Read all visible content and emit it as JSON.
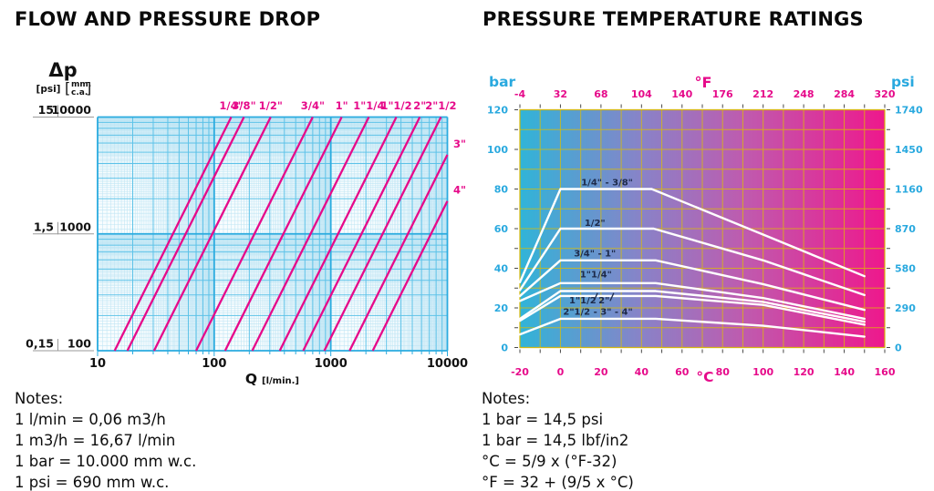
{
  "colors": {
    "magenta": "#e60a8a",
    "cyan_label": "#29a9df",
    "grid_cyan_major": "#2aabdf",
    "grid_cyan_minor": "#5cc2e8",
    "grid_cyan_fine": "#bfe5f4",
    "plot_bg": "#f7fcfe",
    "grad_left": "#30b4d8",
    "grad_mid1": "#8883c8",
    "grad_mid2": "#c05aae",
    "grad_right": "#ee188c",
    "grid_yellow": "rgba(222,190,0,0.75)",
    "pt_border": "rgba(214,182,0,0.9)",
    "curve_white": "#ffffff",
    "curve_label": "#1d2a4a",
    "tick": "#4a4a4a",
    "text": "#111111",
    "rule_gray": "#9a9a9a"
  },
  "left_panel": {
    "title": "FLOW AND PRESSURE DROP",
    "notes": [
      "Notes:",
      "1 l/min = 0,06 m3/h",
      "1 m3/h = 16,67 l/min",
      "1 bar = 10.000 mm w.c.",
      "1 psi = 690 mm w.c."
    ]
  },
  "right_panel": {
    "title": "PRESSURE TEMPERATURE RATINGS",
    "notes": [
      "Notes:",
      "1 bar = 14,5 psi",
      "1 bar = 14,5 lbf/in2",
      "°C = 5/9 x (°F-32)",
      "°F = 32 + (9/5 x °C)"
    ]
  },
  "chart_data": [
    {
      "type": "line",
      "title": "FLOW AND PRESSURE DROP",
      "x_scale": "log",
      "y_scale": "log",
      "xlabel_main": "Q",
      "xlabel_unit": "[l/min.]",
      "ylabel_main": "Δp",
      "ylabel_unit_left": "[psi]",
      "ylabel_unit_right_lines": [
        "mm.",
        "c.a."
      ],
      "xlim": [
        10,
        10000
      ],
      "ylim": [
        100,
        10000
      ],
      "x_ticks": [
        10,
        100,
        1000,
        10000
      ],
      "y_axis_rows": [
        {
          "psi": "15",
          "mm": "10000",
          "value": 10000
        },
        {
          "psi": "1,5",
          "mm": "1000",
          "value": 1000
        },
        {
          "psi": "0,15",
          "mm": "100",
          "value": 100
        }
      ],
      "grid": "log-log fine graph paper",
      "series": [
        {
          "name": "1/4\"",
          "points": [
            [
              14,
              100
            ],
            [
              140,
              10000
            ]
          ],
          "label_pos": "top"
        },
        {
          "name": "3/8\"",
          "points": [
            [
              18,
              100
            ],
            [
              180,
              10000
            ]
          ],
          "label_pos": "top"
        },
        {
          "name": "1/2\"",
          "points": [
            [
              30.5,
              100
            ],
            [
              305,
              10000
            ]
          ],
          "label_pos": "top"
        },
        {
          "name": "3/4\"",
          "points": [
            [
              70,
              100
            ],
            [
              700,
              10000
            ]
          ],
          "label_pos": "top"
        },
        {
          "name": "1\"",
          "points": [
            [
              124,
              100
            ],
            [
              1240,
              10000
            ]
          ],
          "label_pos": "top"
        },
        {
          "name": "1\"1/4",
          "points": [
            [
              212,
              100
            ],
            [
              2120,
              10000
            ]
          ],
          "label_pos": "top"
        },
        {
          "name": "1\"1/2",
          "points": [
            [
              365,
              100
            ],
            [
              3650,
              10000
            ]
          ],
          "label_pos": "top"
        },
        {
          "name": "2\"",
          "points": [
            [
              580,
              100
            ],
            [
              5800,
              10000
            ]
          ],
          "label_pos": "top"
        },
        {
          "name": "2\"1/2",
          "points": [
            [
              880,
              100
            ],
            [
              8800,
              10000
            ]
          ],
          "label_pos": "top"
        },
        {
          "name": "3\"",
          "points": [
            [
              1450,
              100
            ],
            [
              10000,
              4760
            ]
          ],
          "label_pos": "right"
        },
        {
          "name": "4\"",
          "points": [
            [
              2290,
              100
            ],
            [
              10000,
              1910
            ]
          ],
          "label_pos": "right"
        }
      ]
    },
    {
      "type": "line",
      "title": "PRESSURE TEMPERATURE RATINGS",
      "axis_names": {
        "left": "bar",
        "right": "psi",
        "top": "°F",
        "bottom": "°C"
      },
      "xlim_c": [
        -20,
        160
      ],
      "ylim_bar": [
        0,
        120
      ],
      "c_labels": [
        -20,
        0,
        20,
        40,
        60,
        80,
        100,
        120,
        140,
        160
      ],
      "f_labels": [
        -4,
        32,
        68,
        104,
        140,
        176,
        212,
        248,
        284,
        320
      ],
      "bar_labels": [
        0,
        20,
        40,
        60,
        80,
        100,
        120
      ],
      "psi_labels": [
        0,
        290,
        580,
        870,
        1160,
        1450,
        1740
      ],
      "grid_step_c": 10,
      "grid_step_bar": 10,
      "series": [
        {
          "name": "1/4\" - 3/8\"",
          "points": [
            [
              -20,
              33
            ],
            [
              0,
              80
            ],
            [
              45,
              80
            ],
            [
              100,
              57
            ],
            [
              150,
              36
            ]
          ]
        },
        {
          "name": "1/2\"",
          "points": [
            [
              -20,
              29
            ],
            [
              0,
              60
            ],
            [
              46,
              60
            ],
            [
              100,
              44
            ],
            [
              150,
              26.5
            ]
          ]
        },
        {
          "name": "3/4\" - 1\"",
          "points": [
            [
              -20,
              26
            ],
            [
              0,
              44
            ],
            [
              47,
              44
            ],
            [
              100,
              32
            ],
            [
              150,
              19
            ]
          ]
        },
        {
          "name": "1\"1/4",
          "points": [
            [
              -20,
              23.5
            ],
            [
              0,
              32.5
            ],
            [
              47,
              32.5
            ],
            [
              100,
              25
            ],
            [
              150,
              14.5
            ]
          ]
        },
        {
          "name": "1\"1/2",
          "points": [
            [
              -20,
              14.5
            ],
            [
              0,
              28.5
            ],
            [
              47,
              28.5
            ],
            [
              100,
              23
            ],
            [
              150,
              13
            ]
          ]
        },
        {
          "name": "2\"",
          "points": [
            [
              -20,
              13.5
            ],
            [
              0,
              26
            ],
            [
              47,
              26
            ],
            [
              100,
              21.5
            ],
            [
              150,
              11.5
            ]
          ]
        },
        {
          "name": "2\"1/2 - 3\" - 4\"",
          "points": [
            [
              -20,
              6.6
            ],
            [
              0,
              14.5
            ],
            [
              47,
              14.5
            ],
            [
              100,
              11
            ],
            [
              150,
              5.5
            ]
          ]
        }
      ],
      "curve_labels": [
        {
          "text": "1/4\" - 3/8\"",
          "c": 23,
          "bar": 83.5
        },
        {
          "text": "1/2\"",
          "c": 17,
          "bar": 63
        },
        {
          "text": "3/4\" - 1\"",
          "c": 17,
          "bar": 47.5
        },
        {
          "text": "1\"1/4\"",
          "c": 17.5,
          "bar": 37
        },
        {
          "text": "1\"1/2",
          "c": 11,
          "bar": 23.8
        },
        {
          "text": "2\"",
          "c": 21.5,
          "bar": 23.8
        },
        {
          "text": "2\"1/2 - 3\" - 4\"",
          "c": 18.5,
          "bar": 18.2
        }
      ],
      "slashes": [
        [
          16.5,
          23.5,
          18.3,
          27.5
        ],
        [
          24.5,
          23.5,
          26.3,
          27.5
        ]
      ]
    }
  ]
}
